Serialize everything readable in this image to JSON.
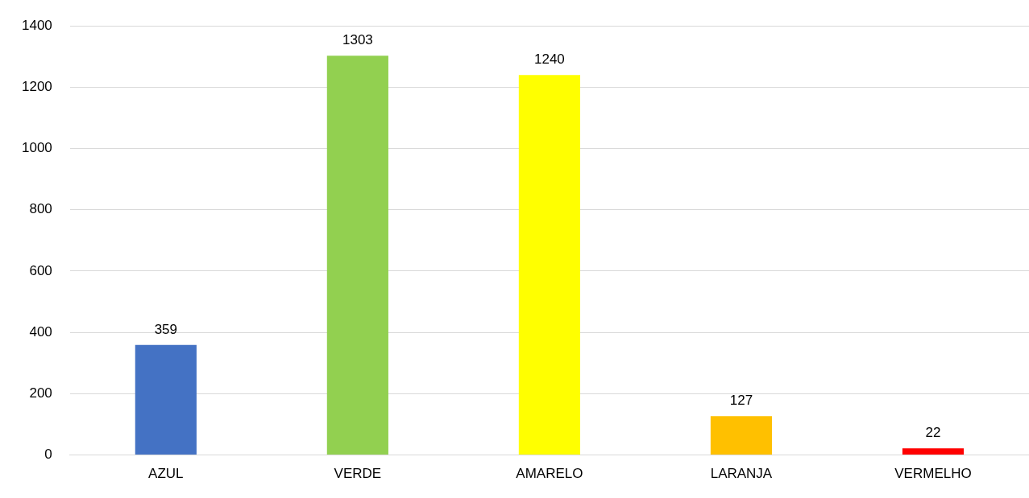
{
  "chart_data": {
    "type": "bar",
    "categories": [
      "AZUL",
      "VERDE",
      "AMARELO",
      "LARANJA",
      "VERMELHO"
    ],
    "values": [
      359,
      1303,
      1240,
      127,
      22
    ],
    "colors": [
      "#4472c4",
      "#92d050",
      "#ffff00",
      "#ffc000",
      "#ff0000"
    ],
    "ylim": [
      0,
      1400
    ],
    "yticks": [
      0,
      200,
      400,
      600,
      800,
      1000,
      1200,
      1400
    ],
    "grid": "y",
    "data_labels": true,
    "legend": false
  }
}
